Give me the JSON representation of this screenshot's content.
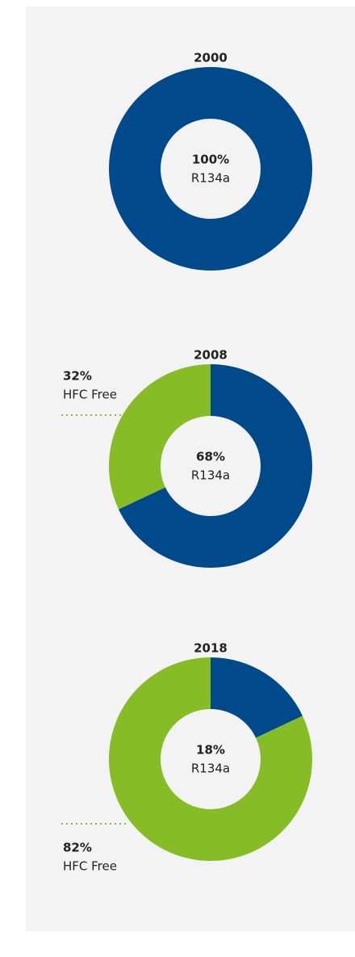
{
  "chart_data": [
    {
      "type": "pie",
      "donut": true,
      "title": "2000",
      "categories": [
        "R134a"
      ],
      "values": [
        100
      ],
      "value_labels": [
        "100%"
      ],
      "colors": [
        "#004a8b"
      ]
    },
    {
      "type": "pie",
      "donut": true,
      "title": "2008",
      "categories": [
        "R134a",
        "HFC Free"
      ],
      "values": [
        68,
        32
      ],
      "value_labels": [
        "68%",
        "32%"
      ],
      "colors": [
        "#004a8b",
        "#86bc25"
      ]
    },
    {
      "type": "pie",
      "donut": true,
      "title": "2018",
      "categories": [
        "R134a",
        "HFC Free"
      ],
      "values": [
        18,
        82
      ],
      "value_labels": [
        "18%",
        "82%"
      ],
      "colors": [
        "#004a8b",
        "#86bc25"
      ]
    }
  ]
}
